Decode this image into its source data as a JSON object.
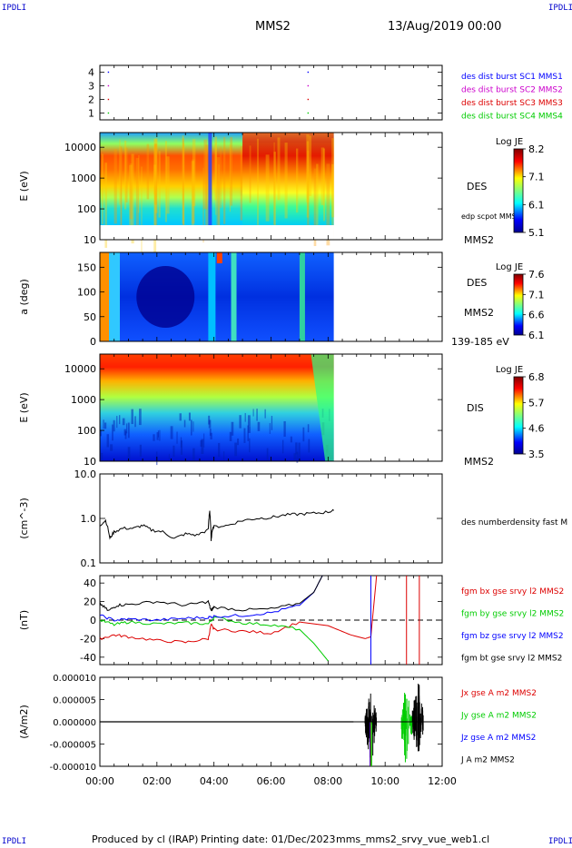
{
  "header": {
    "corner_tl": "IPDLI",
    "corner_tr": "IPDLI",
    "corner_bl": "IPDLI",
    "corner_br": "IPDLI",
    "spacecraft": "MMS2",
    "date": "13/Aug/2019 00:00"
  },
  "footer": {
    "produced_by": "Produced by cl (IRAP)",
    "printing_date": "Printing date: 01/Dec/2023",
    "config": "mms_mms2_srvy_vue_web1.cl"
  },
  "colors": {
    "blue": "#0000ff",
    "magenta": "#cc00cc",
    "red": "#dd0000",
    "green": "#00cc00",
    "black": "#000000"
  },
  "chart_data": [
    {
      "type": "scatter",
      "panel": "availability",
      "y_ticks": [
        "4",
        "3",
        "2",
        "1"
      ],
      "ylim": [
        0.5,
        4.5
      ],
      "series": [
        {
          "name": "des dist burst SC1 MMS1",
          "color": "blue",
          "y": 4,
          "x_hours": [
            0.3,
            7.3
          ]
        },
        {
          "name": "des dist burst SC2 MMS2",
          "color": "magenta",
          "y": 3,
          "x_hours": [
            0.3,
            7.3
          ]
        },
        {
          "name": "des dist burst SC3 MMS3",
          "color": "red",
          "y": 2,
          "x_hours": [
            0.3,
            7.3
          ]
        },
        {
          "name": "des dist burst SC4 MMS4",
          "color": "green",
          "y": 1,
          "x_hours": [
            0.3,
            7.3
          ]
        }
      ]
    },
    {
      "type": "heatmap",
      "panel": "des_energy",
      "ylabel": "E (eV)",
      "y_ticks": [
        "10000",
        "1000",
        "100",
        "10"
      ],
      "y_log": true,
      "ylim": [
        10,
        30000
      ],
      "data_end_hour": 8.2,
      "right_labels": [
        "DES",
        "edp scpot MMS2",
        "MMS2"
      ],
      "colorbar": {
        "title": "Log JE",
        "ticks": [
          "8.2",
          "7.1",
          "6.1",
          "5.1"
        ]
      }
    },
    {
      "type": "heatmap",
      "panel": "des_pitch",
      "ylabel": "a (deg)",
      "y_ticks": [
        "150",
        "100",
        "50",
        "0"
      ],
      "ylim": [
        0,
        180
      ],
      "data_end_hour": 8.2,
      "right_labels": [
        "DES",
        "MMS2",
        "139-185 eV"
      ],
      "colorbar": {
        "title": "Log JE",
        "ticks": [
          "7.6",
          "7.1",
          "6.6",
          "6.1"
        ]
      }
    },
    {
      "type": "heatmap",
      "panel": "dis_energy",
      "ylabel": "E (eV)",
      "y_ticks": [
        "10000",
        "1000",
        "100",
        "10"
      ],
      "y_log": true,
      "ylim": [
        10,
        30000
      ],
      "data_end_hour": 8.2,
      "right_labels": [
        "DIS",
        "MMS2"
      ],
      "colorbar": {
        "title": "Log JE",
        "ticks": [
          "6.8",
          "5.7",
          "4.6",
          "3.5"
        ]
      }
    },
    {
      "type": "line",
      "panel": "density",
      "ylabel": "(cm^-3)",
      "y_ticks": [
        "10.0",
        "1.0",
        "0.1"
      ],
      "y_log": true,
      "ylim": [
        0.1,
        10
      ],
      "series": [
        {
          "name": "des numberdensity fast M",
          "color": "black",
          "x": [
            0.0,
            0.2,
            0.35,
            0.5,
            0.8,
            1.2,
            1.5,
            1.8,
            2.2,
            2.6,
            3.0,
            3.4,
            3.8,
            3.85,
            3.9,
            3.95,
            4.0,
            4.5,
            5.0,
            5.5,
            6.0,
            6.5,
            7.0,
            7.5,
            8.0,
            8.2
          ],
          "y": [
            0.7,
            0.9,
            0.35,
            0.5,
            0.6,
            0.6,
            0.7,
            0.55,
            0.5,
            0.35,
            0.45,
            0.42,
            0.55,
            1.5,
            0.3,
            0.6,
            0.65,
            0.7,
            0.9,
            1.0,
            1.05,
            1.2,
            1.25,
            1.3,
            1.4,
            1.5
          ]
        }
      ]
    },
    {
      "type": "line",
      "panel": "magnetic_field",
      "ylabel": "(nT)",
      "y_ticks": [
        "40",
        "20",
        "0",
        "-20",
        "-40"
      ],
      "ylim": [
        -48,
        48
      ],
      "series": [
        {
          "name": "fgm bx gse srvy l2 MMS2",
          "color": "red",
          "x": [
            0.0,
            0.5,
            1.0,
            2.0,
            3.0,
            3.8,
            3.9,
            4.0,
            5.0,
            6.0,
            7.0,
            8.0,
            8.8,
            9.3,
            9.5,
            9.7
          ],
          "y": [
            -20,
            -16,
            -18,
            -22,
            -24,
            -20,
            -5,
            -10,
            -12,
            -14,
            -2,
            -6,
            -16,
            -20,
            -18,
            48
          ]
        },
        {
          "name": "fgm by gse srvy l2 MMS2",
          "color": "green",
          "x": [
            0.0,
            0.5,
            1.0,
            2.0,
            3.0,
            3.8,
            4.0,
            5.0,
            6.0,
            7.0,
            7.5,
            8.0
          ],
          "y": [
            0,
            -5,
            -2,
            -4,
            -3,
            -4,
            3,
            -3,
            -5,
            -10,
            -25,
            -44
          ]
        },
        {
          "name": "fgm bz gse srvy l2 MMS2",
          "color": "blue",
          "x": [
            0.0,
            0.5,
            1.0,
            2.0,
            3.0,
            3.8,
            4.0,
            5.0,
            6.0,
            7.0,
            7.5,
            7.8
          ],
          "y": [
            5,
            0,
            1,
            0,
            2,
            3,
            4,
            5,
            8,
            16,
            30,
            48
          ]
        },
        {
          "name": "fgm bt gse srvy l2 MMS2",
          "color": "black",
          "x": [
            0.0,
            0.3,
            0.6,
            1.0,
            2.0,
            3.0,
            3.8,
            3.9,
            4.0,
            5.0,
            6.0,
            7.0,
            7.5,
            7.8
          ],
          "y": [
            18,
            10,
            16,
            17,
            20,
            16,
            20,
            10,
            14,
            11,
            12,
            18,
            30,
            48
          ]
        }
      ],
      "reference_line": 0
    },
    {
      "type": "line",
      "panel": "current_density",
      "ylabel": "(A/m2)",
      "y_ticks": [
        "0.000010",
        "0.000005",
        "0.000000",
        "-0.000005",
        "-0.000010"
      ],
      "ylim": [
        -1e-05,
        1e-05
      ],
      "series": [
        {
          "name": "Jx gse A m2 MMS2",
          "color": "red"
        },
        {
          "name": "Jy gse A m2 MMS2",
          "color": "green"
        },
        {
          "name": "Jz gse A m2 MMS2",
          "color": "blue"
        },
        {
          "name": "J A m2 MMS2",
          "color": "black"
        }
      ]
    }
  ],
  "time_axis": {
    "ticks": [
      "00:00",
      "02:00",
      "04:00",
      "06:00",
      "08:00",
      "10:00",
      "12:00"
    ],
    "range_hours": [
      0,
      12
    ]
  }
}
